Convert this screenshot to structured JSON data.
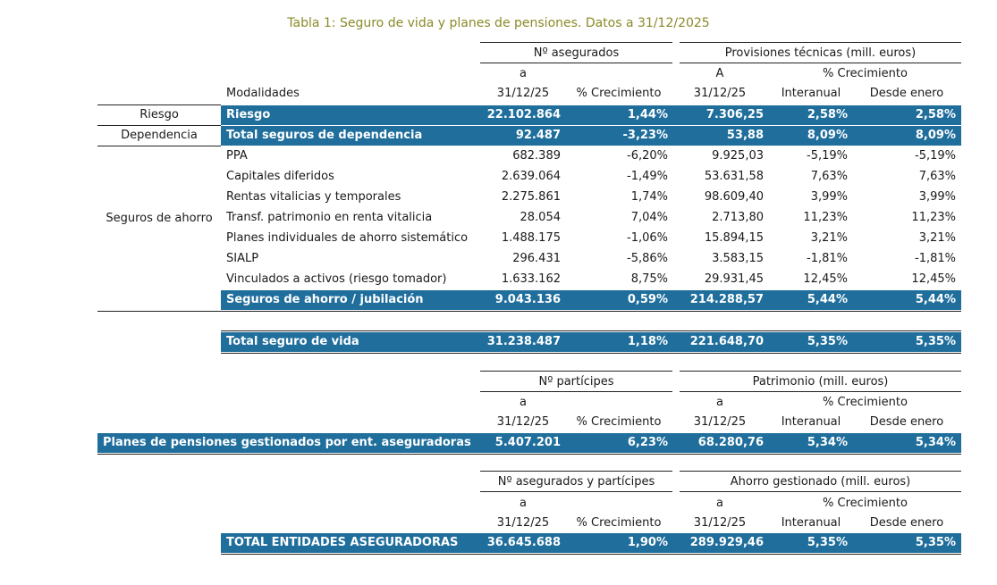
{
  "title": "Tabla 1: Seguro de vida y planes de pensiones. Datos a 31/12/2025",
  "t1": {
    "hdr_asegurados": "Nº asegurados",
    "hdr_provisiones": "Provisiones técnicas (mill. euros)",
    "hdr_a1": "a",
    "hdr_a2": "A",
    "hdr_crec": "% Crecimiento",
    "modalidades": "Modalidades",
    "date1": "31/12/25",
    "crec": "% Crecimiento",
    "date2": "31/12/25",
    "interanual": "Interanual",
    "desde": "Desde enero",
    "group_riesgo": "Riesgo",
    "group_dependencia": "Dependencia",
    "group_ahorro": "Seguros de ahorro",
    "riesgo": [
      "Riesgo",
      "22.102.864",
      "1,44%",
      "7.306,25",
      "2,58%",
      "2,58%"
    ],
    "dependencia": [
      "Total seguros de dependencia",
      "92.487",
      "-3,23%",
      "53,88",
      "8,09%",
      "8,09%"
    ],
    "ahorro_rows": [
      [
        "PPA",
        "682.389",
        "-6,20%",
        "9.925,03",
        "-5,19%",
        "-5,19%"
      ],
      [
        "Capitales diferidos",
        "2.639.064",
        "-1,49%",
        "53.631,58",
        "7,63%",
        "7,63%"
      ],
      [
        "Rentas vitalicias y temporales",
        "2.275.861",
        "1,74%",
        "98.609,40",
        "3,99%",
        "3,99%"
      ],
      [
        "Transf. patrimonio en renta vitalicia",
        "28.054",
        "7,04%",
        "2.713,80",
        "11,23%",
        "11,23%"
      ],
      [
        "Planes individuales de ahorro sistemático",
        "1.488.175",
        "-1,06%",
        "15.894,15",
        "3,21%",
        "3,21%"
      ],
      [
        "SIALP",
        "296.431",
        "-5,86%",
        "3.583,15",
        "-1,81%",
        "-1,81%"
      ],
      [
        "Vinculados a activos (riesgo tomador)",
        "1.633.162",
        "8,75%",
        "29.931,45",
        "12,45%",
        "12,45%"
      ]
    ],
    "ahorro_total": [
      "Seguros de ahorro / jubilación",
      "9.043.136",
      "0,59%",
      "214.288,57",
      "5,44%",
      "5,44%"
    ],
    "total_vida": [
      "Total seguro de vida",
      "31.238.487",
      "1,18%",
      "221.648,70",
      "5,35%",
      "5,35%"
    ]
  },
  "t2": {
    "hdr_left": "Nº partícipes",
    "hdr_right": "Patrimonio (mill. euros)",
    "a1": "a",
    "a2": "a",
    "crec_hdr": "% Crecimiento",
    "date1": "31/12/25",
    "crec": "% Crecimiento",
    "date2": "31/12/25",
    "interanual": "Interanual",
    "desde": "Desde enero",
    "row": [
      "Planes de pensiones gestionados por ent. aseguradoras",
      "5.407.201",
      "6,23%",
      "68.280,76",
      "5,34%",
      "5,34%"
    ]
  },
  "t3": {
    "hdr_left": "Nº asegurados y partícipes",
    "hdr_right": "Ahorro gestionado (mill. euros)",
    "a1": "a",
    "a2": "a",
    "crec_hdr": "% Crecimiento",
    "date1": "31/12/25",
    "crec": "% Crecimiento",
    "date2": "31/12/25",
    "interanual": "Interanual",
    "desde": "Desde enero",
    "row": [
      "TOTAL ENTIDADES ASEGURADORAS",
      "36.645.688",
      "1,90%",
      "289.929,46",
      "5,35%",
      "5,35%"
    ]
  }
}
